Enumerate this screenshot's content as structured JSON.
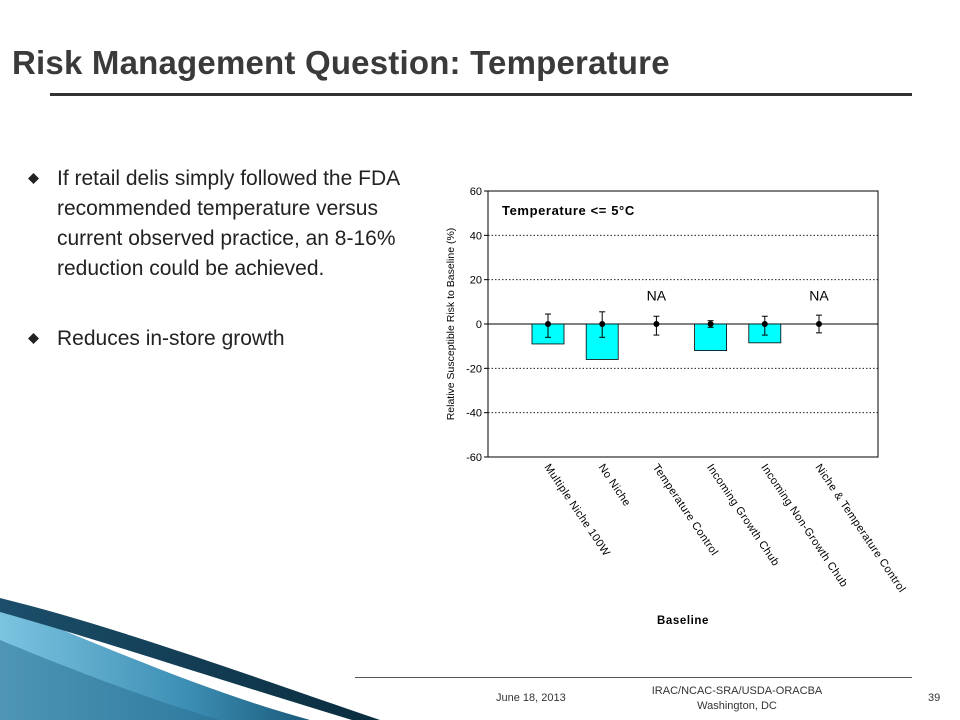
{
  "slide": {
    "title": "Risk Management Question: Temperature",
    "bullets": [
      "If retail delis simply followed the FDA recommended temperature versus current observed practice, an 8-16% reduction could be achieved.",
      "Reduces in-store growth"
    ]
  },
  "footer": {
    "date": "June 18, 2013",
    "org_line1": "IRAC/NCAC-SRA/USDA-ORACBA",
    "org_line2": "Washington, DC",
    "page": "39"
  },
  "colors": {
    "bar": "#00FFFF",
    "title_rule": "#333333",
    "swoosh_dark": "#0a3d55",
    "swoosh_light": "#5fb3d6"
  },
  "chart_data": {
    "type": "bar",
    "annotation": "Temperature <= 5°C",
    "xlabel": "Baseline",
    "ylabel": "Relative Susceptible Risk to Baseline (%)",
    "ylim": [
      -60,
      60
    ],
    "yticks": [
      60,
      40,
      20,
      0,
      -20,
      -40,
      -60
    ],
    "grid": true,
    "categories": [
      "Multiple Niche 100W",
      "No Niche",
      "Temperature Control",
      "Incoming Growth Chub",
      "Incoming Non-Growth Chub",
      "Niche & Temperature Control"
    ],
    "values": [
      -9,
      -16,
      null,
      -12,
      -8.5,
      null
    ],
    "points": [
      0,
      0,
      0,
      0,
      0,
      0
    ],
    "error_high": [
      4.5,
      5.5,
      3.5,
      1.5,
      3.5,
      4
    ],
    "error_low": [
      -6,
      -6,
      -5,
      -1.5,
      -5,
      -4
    ],
    "na_labels": [
      "",
      "",
      "NA",
      "",
      "",
      "NA"
    ]
  }
}
